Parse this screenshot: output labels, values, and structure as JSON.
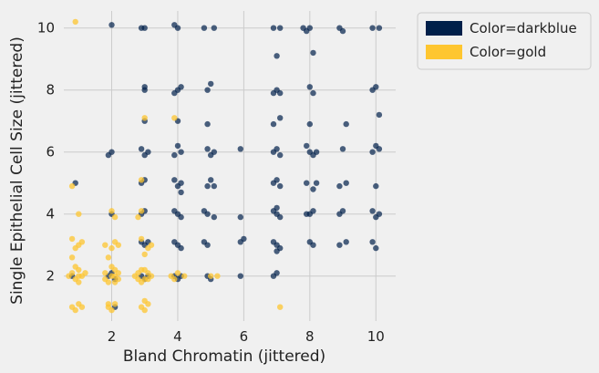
{
  "chart_data": {
    "type": "scatter",
    "xlabel": "Bland Chromatin (jittered)",
    "ylabel": "Single Epithelial Cell Size (jittered)",
    "xlim": [
      0.55,
      10.6
    ],
    "ylim": [
      0.55,
      10.55
    ],
    "x_ticks": [
      2,
      4,
      6,
      8,
      10
    ],
    "y_ticks": [
      2,
      4,
      6,
      8,
      10
    ],
    "grid": true,
    "legend_position": "top-right, outside plot",
    "series": [
      {
        "name": "Color=darkblue",
        "color": "#00204a",
        "points": [
          [
            2.0,
            10.1
          ],
          [
            2.9,
            10.0
          ],
          [
            3.0,
            10.0
          ],
          [
            3.9,
            10.1
          ],
          [
            4.0,
            10.0
          ],
          [
            4.8,
            10.0
          ],
          [
            5.1,
            10.0
          ],
          [
            6.9,
            10.0
          ],
          [
            7.1,
            10.0
          ],
          [
            7.8,
            10.0
          ],
          [
            7.9,
            9.9
          ],
          [
            8.0,
            10.0
          ],
          [
            8.9,
            10.0
          ],
          [
            9.0,
            9.9
          ],
          [
            9.9,
            10.0
          ],
          [
            10.1,
            10.0
          ],
          [
            7.0,
            9.1
          ],
          [
            8.1,
            9.2
          ],
          [
            3.0,
            8.0
          ],
          [
            3.0,
            8.1
          ],
          [
            3.9,
            7.9
          ],
          [
            4.0,
            8.0
          ],
          [
            4.1,
            8.1
          ],
          [
            4.9,
            8.0
          ],
          [
            5.0,
            8.2
          ],
          [
            6.9,
            7.9
          ],
          [
            7.0,
            8.0
          ],
          [
            7.1,
            7.9
          ],
          [
            8.0,
            8.1
          ],
          [
            8.1,
            7.9
          ],
          [
            9.9,
            8.0
          ],
          [
            10.0,
            8.1
          ],
          [
            3.0,
            7.0
          ],
          [
            4.0,
            7.0
          ],
          [
            4.9,
            6.9
          ],
          [
            6.9,
            6.9
          ],
          [
            7.1,
            7.1
          ],
          [
            8.0,
            6.9
          ],
          [
            9.1,
            6.9
          ],
          [
            10.1,
            7.2
          ],
          [
            1.9,
            5.9
          ],
          [
            2.0,
            6.0
          ],
          [
            2.9,
            6.1
          ],
          [
            3.0,
            5.9
          ],
          [
            3.1,
            6.0
          ],
          [
            3.9,
            5.9
          ],
          [
            4.0,
            6.2
          ],
          [
            4.1,
            6.0
          ],
          [
            4.9,
            6.1
          ],
          [
            5.0,
            5.9
          ],
          [
            5.1,
            6.0
          ],
          [
            5.9,
            6.1
          ],
          [
            6.9,
            6.0
          ],
          [
            7.0,
            6.1
          ],
          [
            7.1,
            5.9
          ],
          [
            7.9,
            6.2
          ],
          [
            8.0,
            6.0
          ],
          [
            8.1,
            5.9
          ],
          [
            8.2,
            6.0
          ],
          [
            9.0,
            6.1
          ],
          [
            9.9,
            6.0
          ],
          [
            10.0,
            6.2
          ],
          [
            10.1,
            6.1
          ],
          [
            0.9,
            5.0
          ],
          [
            2.9,
            5.0
          ],
          [
            3.0,
            5.1
          ],
          [
            3.9,
            5.1
          ],
          [
            4.0,
            4.9
          ],
          [
            4.1,
            5.0
          ],
          [
            4.1,
            4.7
          ],
          [
            4.9,
            4.9
          ],
          [
            5.0,
            5.1
          ],
          [
            5.1,
            4.9
          ],
          [
            6.9,
            5.0
          ],
          [
            7.0,
            5.1
          ],
          [
            7.1,
            4.9
          ],
          [
            7.9,
            5.0
          ],
          [
            8.1,
            4.8
          ],
          [
            8.2,
            5.0
          ],
          [
            8.9,
            4.9
          ],
          [
            9.1,
            5.0
          ],
          [
            10.0,
            4.9
          ],
          [
            2.0,
            4.0
          ],
          [
            2.9,
            4.0
          ],
          [
            3.0,
            4.1
          ],
          [
            3.9,
            4.1
          ],
          [
            4.0,
            4.0
          ],
          [
            4.1,
            3.9
          ],
          [
            4.8,
            4.1
          ],
          [
            4.9,
            4.0
          ],
          [
            5.1,
            3.9
          ],
          [
            5.9,
            3.9
          ],
          [
            6.9,
            4.1
          ],
          [
            7.0,
            4.0
          ],
          [
            7.1,
            3.9
          ],
          [
            7.0,
            4.2
          ],
          [
            7.9,
            4.0
          ],
          [
            8.0,
            4.0
          ],
          [
            8.1,
            4.1
          ],
          [
            8.9,
            4.0
          ],
          [
            9.0,
            4.1
          ],
          [
            9.9,
            4.1
          ],
          [
            10.0,
            3.9
          ],
          [
            10.1,
            4.0
          ],
          [
            2.9,
            3.1
          ],
          [
            3.0,
            3.0
          ],
          [
            3.1,
            3.1
          ],
          [
            3.9,
            3.1
          ],
          [
            4.0,
            3.0
          ],
          [
            4.1,
            2.9
          ],
          [
            4.8,
            3.1
          ],
          [
            4.9,
            3.0
          ],
          [
            5.9,
            3.1
          ],
          [
            6.0,
            3.2
          ],
          [
            6.9,
            3.1
          ],
          [
            7.0,
            3.0
          ],
          [
            7.1,
            2.9
          ],
          [
            7.0,
            2.8
          ],
          [
            8.0,
            3.1
          ],
          [
            8.1,
            3.0
          ],
          [
            8.9,
            3.0
          ],
          [
            9.1,
            3.1
          ],
          [
            9.9,
            3.1
          ],
          [
            10.0,
            2.9
          ],
          [
            0.8,
            2.0
          ],
          [
            1.9,
            2.0
          ],
          [
            2.0,
            2.1
          ],
          [
            2.1,
            1.9
          ],
          [
            2.9,
            2.0
          ],
          [
            3.0,
            1.9
          ],
          [
            3.1,
            2.0
          ],
          [
            3.9,
            2.0
          ],
          [
            4.0,
            1.9
          ],
          [
            4.1,
            2.0
          ],
          [
            4.9,
            2.0
          ],
          [
            5.0,
            1.9
          ],
          [
            5.9,
            2.0
          ],
          [
            6.9,
            2.0
          ],
          [
            7.0,
            2.1
          ],
          [
            2.1,
            1.0
          ]
        ]
      },
      {
        "name": "Color=gold",
        "color": "#fec630",
        "points": [
          [
            0.9,
            10.2
          ],
          [
            3.0,
            7.1
          ],
          [
            3.9,
            7.1
          ],
          [
            2.9,
            5.1
          ],
          [
            2.9,
            4.1
          ],
          [
            0.8,
            4.9
          ],
          [
            2.0,
            4.1
          ],
          [
            2.1,
            3.9
          ],
          [
            1.0,
            4.0
          ],
          [
            2.8,
            3.9
          ],
          [
            0.8,
            3.2
          ],
          [
            1.0,
            3.0
          ],
          [
            0.9,
            2.9
          ],
          [
            1.1,
            3.1
          ],
          [
            1.8,
            3.0
          ],
          [
            2.0,
            2.9
          ],
          [
            2.1,
            3.1
          ],
          [
            2.2,
            3.0
          ],
          [
            2.9,
            3.2
          ],
          [
            3.1,
            2.9
          ],
          [
            3.2,
            3.0
          ],
          [
            0.8,
            2.6
          ],
          [
            1.9,
            2.6
          ],
          [
            3.0,
            2.7
          ],
          [
            0.8,
            2.1
          ],
          [
            0.9,
            1.9
          ],
          [
            1.0,
            2.2
          ],
          [
            1.0,
            1.8
          ],
          [
            1.1,
            2.0
          ],
          [
            1.2,
            2.1
          ],
          [
            0.7,
            2.0
          ],
          [
            1.0,
            2.0
          ],
          [
            0.9,
            2.3
          ],
          [
            1.8,
            2.1
          ],
          [
            1.9,
            1.8
          ],
          [
            2.0,
            2.0
          ],
          [
            2.1,
            2.2
          ],
          [
            2.2,
            1.9
          ],
          [
            2.0,
            2.3
          ],
          [
            1.8,
            1.9
          ],
          [
            2.1,
            1.8
          ],
          [
            2.2,
            2.1
          ],
          [
            2.7,
            2.0
          ],
          [
            2.8,
            2.1
          ],
          [
            2.9,
            1.8
          ],
          [
            3.0,
            2.2
          ],
          [
            3.1,
            1.9
          ],
          [
            3.2,
            2.0
          ],
          [
            3.1,
            2.1
          ],
          [
            2.9,
            2.2
          ],
          [
            3.0,
            1.9
          ],
          [
            2.8,
            1.9
          ],
          [
            3.8,
            2.0
          ],
          [
            4.0,
            2.1
          ],
          [
            4.2,
            2.0
          ],
          [
            3.9,
            1.9
          ],
          [
            5.0,
            2.0
          ],
          [
            5.2,
            2.0
          ],
          [
            2.1,
            2.0
          ],
          [
            0.8,
            1.0
          ],
          [
            0.9,
            0.9
          ],
          [
            1.0,
            1.1
          ],
          [
            1.1,
            1.0
          ],
          [
            1.9,
            1.0
          ],
          [
            2.0,
            0.9
          ],
          [
            1.9,
            1.1
          ],
          [
            2.1,
            1.1
          ],
          [
            2.9,
            1.0
          ],
          [
            3.0,
            0.9
          ],
          [
            3.1,
            1.1
          ],
          [
            3.0,
            1.2
          ],
          [
            7.1,
            1.0
          ]
        ]
      }
    ]
  }
}
